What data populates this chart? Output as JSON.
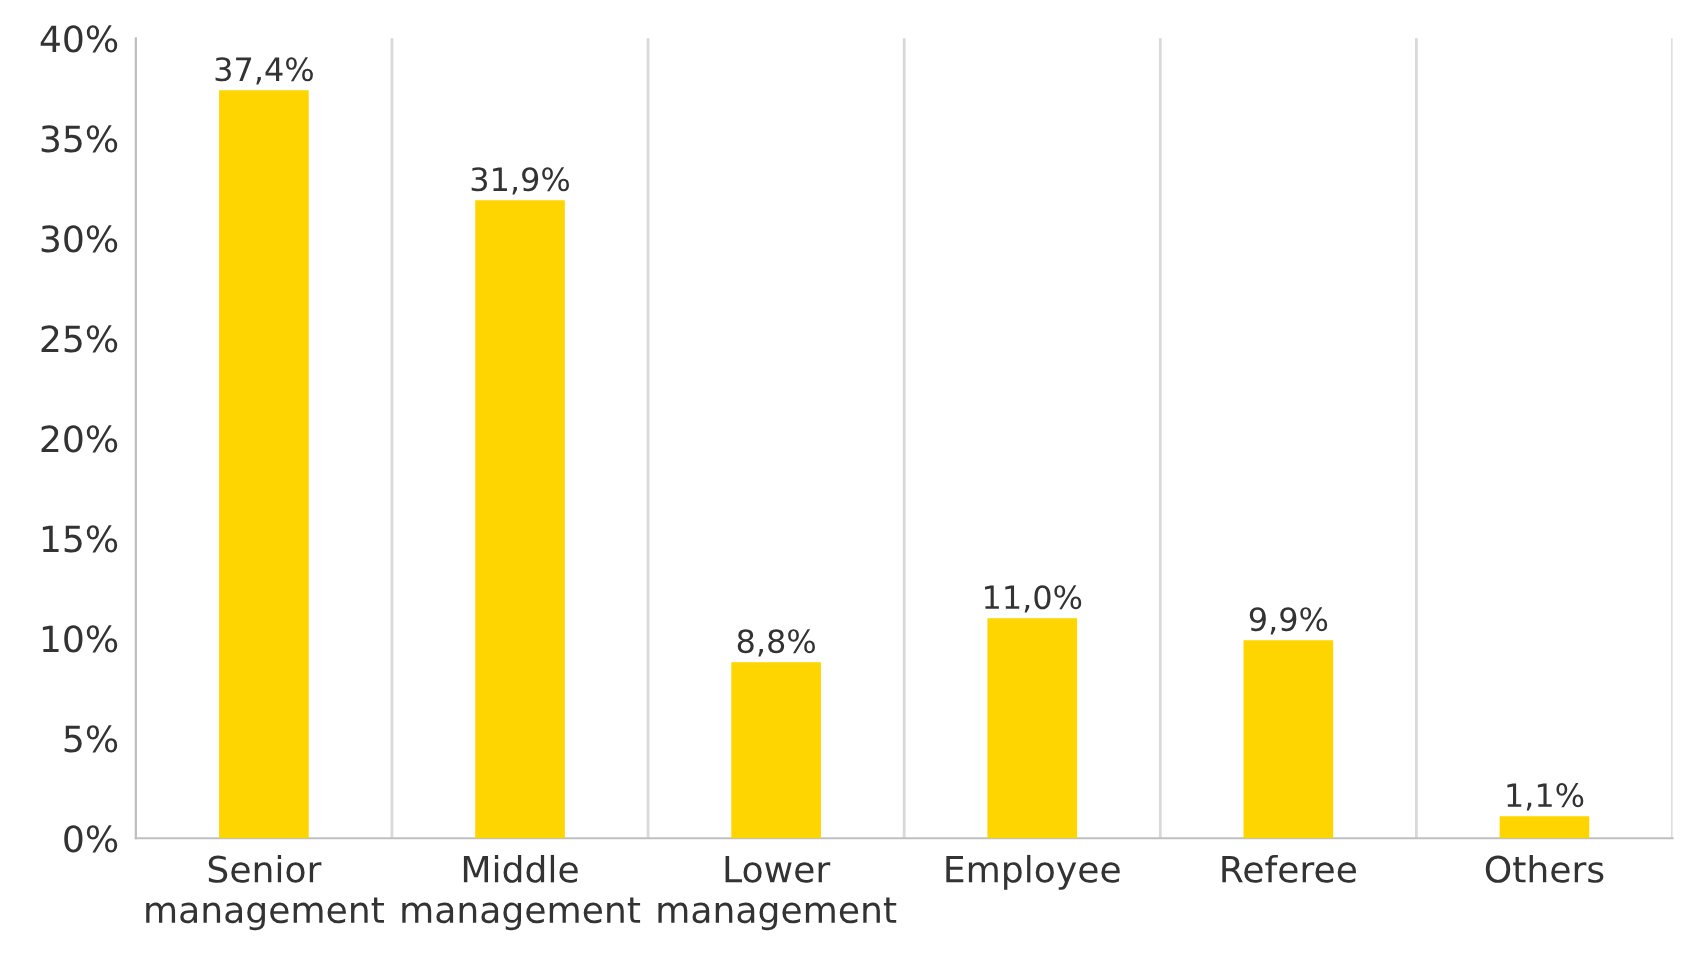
{
  "chart_data": {
    "type": "bar",
    "categories": [
      "Senior\nmanagement",
      "Middle\nmanagement",
      "Lower\nmanagement",
      "Employee",
      "Referee",
      "Others"
    ],
    "values": [
      37.4,
      31.9,
      8.8,
      11.0,
      9.9,
      1.1
    ],
    "value_labels": [
      "37,4%",
      "31,9%",
      "8,8%",
      "11,0%",
      "9,9%",
      "1,1%"
    ],
    "color": "#ffd500",
    "ylim": [
      0,
      40
    ],
    "yticks": [
      {
        "value": 0,
        "label": "0%"
      },
      {
        "value": 5,
        "label": "5%"
      },
      {
        "value": 10,
        "label": "10%"
      },
      {
        "value": 15,
        "label": "15%"
      },
      {
        "value": 20,
        "label": "20%"
      },
      {
        "value": 25,
        "label": "25%"
      },
      {
        "value": 30,
        "label": "30%"
      },
      {
        "value": 35,
        "label": "35%"
      },
      {
        "value": 40,
        "label": "40%"
      }
    ],
    "grid": "x"
  }
}
